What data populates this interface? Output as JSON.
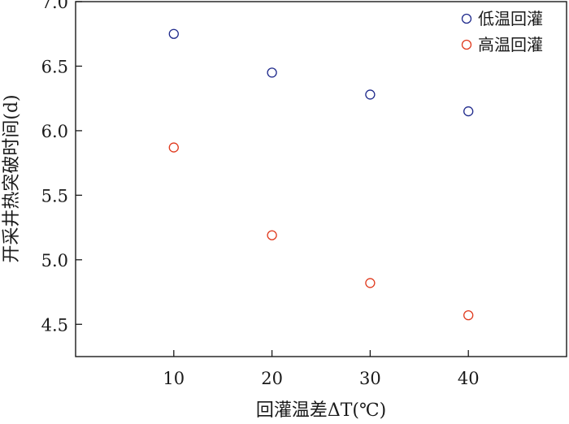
{
  "chart_data": {
    "type": "scatter",
    "title": "",
    "xlabel": "回灌温差ΔT(℃)",
    "ylabel": "开采井热突破时间(d)",
    "xlim": [
      0,
      50
    ],
    "ylim": [
      4.25,
      7.0
    ],
    "x_ticks": [
      10,
      20,
      30,
      40
    ],
    "x_tick_labels": [
      "10",
      "20",
      "30",
      "40"
    ],
    "y_ticks": [
      4.5,
      5.0,
      5.5,
      6.0,
      6.5,
      7.0
    ],
    "y_tick_labels": [
      "4.5",
      "5.0",
      "5.5",
      "6.0",
      "6.5",
      "7.0"
    ],
    "grid": false,
    "legend_position": "top-right",
    "series": [
      {
        "name": "低温回灌",
        "color": "#1f2a8c",
        "marker": "open-circle",
        "x": [
          10,
          20,
          30,
          40
        ],
        "y": [
          6.75,
          6.45,
          6.28,
          6.15
        ]
      },
      {
        "name": "高温回灌",
        "color": "#e03a1e",
        "marker": "open-circle",
        "x": [
          10,
          20,
          30,
          40
        ],
        "y": [
          5.87,
          5.19,
          4.82,
          4.57
        ]
      }
    ]
  }
}
